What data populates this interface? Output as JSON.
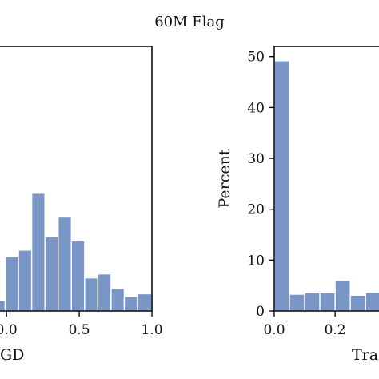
{
  "title": "60M Flag",
  "chart_data": [
    {
      "type": "bar",
      "xlabel": "GD",
      "ylabel": "",
      "xlim": [
        -0.1,
        1.0
      ],
      "ylim": [
        0,
        20
      ],
      "bin_width": 0.0909,
      "bins": [
        {
          "x0": -0.1,
          "x1": -0.009,
          "value": 0.8
        },
        {
          "x0": -0.009,
          "x1": 0.082,
          "value": 4.1
        },
        {
          "x0": 0.082,
          "x1": 0.173,
          "value": 4.6
        },
        {
          "x0": 0.173,
          "x1": 0.264,
          "value": 8.9
        },
        {
          "x0": 0.264,
          "x1": 0.355,
          "value": 5.6
        },
        {
          "x0": 0.355,
          "x1": 0.446,
          "value": 7.1
        },
        {
          "x0": 0.446,
          "x1": 0.537,
          "value": 5.3
        },
        {
          "x0": 0.537,
          "x1": 0.628,
          "value": 2.5
        },
        {
          "x0": 0.628,
          "x1": 0.719,
          "value": 2.8
        },
        {
          "x0": 0.719,
          "x1": 0.81,
          "value": 1.7
        },
        {
          "x0": 0.81,
          "x1": 0.901,
          "value": 1.1
        },
        {
          "x0": 0.901,
          "x1": 1.0,
          "value": 1.3
        }
      ],
      "xticks": [
        {
          "value": 0.0,
          "label": "0.0"
        },
        {
          "value": 0.5,
          "label": "0.5"
        },
        {
          "value": 1.0,
          "label": "1.0"
        }
      ],
      "yticks": [],
      "color": "#7996c7"
    },
    {
      "type": "bar",
      "xlabel": "Tra",
      "ylabel": "Percent",
      "xlim": [
        0.0,
        0.36
      ],
      "ylim": [
        0,
        52
      ],
      "bin_width": 0.05,
      "bins": [
        {
          "x0": 0.0,
          "x1": 0.05,
          "value": 49.2
        },
        {
          "x0": 0.05,
          "x1": 0.1,
          "value": 3.3
        },
        {
          "x0": 0.1,
          "x1": 0.15,
          "value": 3.6
        },
        {
          "x0": 0.15,
          "x1": 0.2,
          "value": 3.6
        },
        {
          "x0": 0.2,
          "x1": 0.25,
          "value": 6.0
        },
        {
          "x0": 0.25,
          "x1": 0.3,
          "value": 3.1
        },
        {
          "x0": 0.3,
          "x1": 0.35,
          "value": 3.7
        }
      ],
      "xticks": [
        {
          "value": 0.0,
          "label": "0.0"
        },
        {
          "value": 0.2,
          "label": "0.2"
        }
      ],
      "yticks": [
        {
          "value": 0,
          "label": "0"
        },
        {
          "value": 10,
          "label": "10"
        },
        {
          "value": 20,
          "label": "20"
        },
        {
          "value": 30,
          "label": "30"
        },
        {
          "value": 40,
          "label": "40"
        },
        {
          "value": 50,
          "label": "50"
        }
      ],
      "color": "#7996c7"
    }
  ]
}
